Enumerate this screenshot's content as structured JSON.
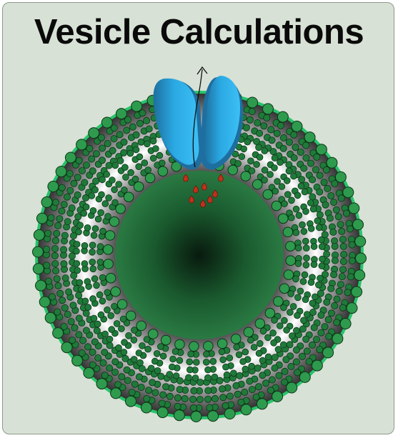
{
  "title": "Vesicle Calculations",
  "figure": {
    "icons": [
      "vesicle-icon",
      "lipid-bilayer-icon",
      "membrane-channel-icon",
      "transport-arrow-icon",
      "cargo-molecule-icon"
    ],
    "colors": {
      "background": "#d7e1d5",
      "border": "#8e9a8c",
      "lumen_light": "#2a7a43",
      "lumen_dark": "#081a0e",
      "lipid_head": "#2e9a4d",
      "lipid_tail": "#1f7a3a",
      "outline": "#0b3516",
      "outer_rim": "#27c46a",
      "channel_light": "#27b2ec",
      "channel_dark": "#1e6ea0",
      "cargo": "#c0301c"
    }
  }
}
